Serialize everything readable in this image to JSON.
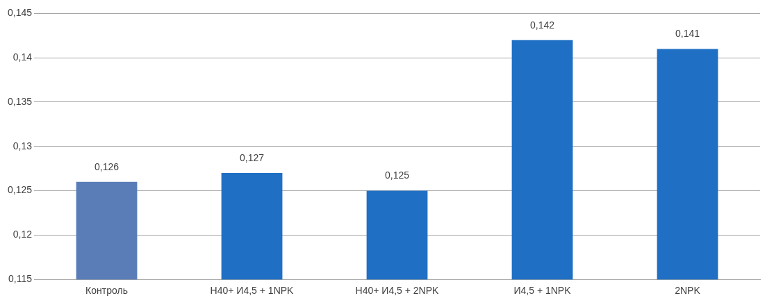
{
  "chart_data": {
    "type": "bar",
    "categories": [
      "Контроль",
      "Н40+ И4,5 + 1NPK",
      "Н40+ И4,5 + 2NPK",
      "И4,5 + 1NPK",
      "2NPK"
    ],
    "values": [
      0.126,
      0.127,
      0.125,
      0.142,
      0.141
    ],
    "value_labels": [
      "0,126",
      "0,127",
      "0,125",
      "0,142",
      "0,141"
    ],
    "colors": [
      "#5a7db8",
      "#1f6fc4",
      "#1f6fc4",
      "#1f6fc4",
      "#1f6fc4"
    ],
    "ylim": [
      0.115,
      0.145
    ],
    "yticks": [
      {
        "value": 0.115,
        "label": "0,115"
      },
      {
        "value": 0.12,
        "label": "0,12"
      },
      {
        "value": 0.125,
        "label": "0,125"
      },
      {
        "value": 0.13,
        "label": "0,13"
      },
      {
        "value": 0.135,
        "label": "0,135"
      },
      {
        "value": 0.14,
        "label": "0,14"
      },
      {
        "value": 0.145,
        "label": "0,145"
      }
    ],
    "grid": "y",
    "legend": false
  }
}
